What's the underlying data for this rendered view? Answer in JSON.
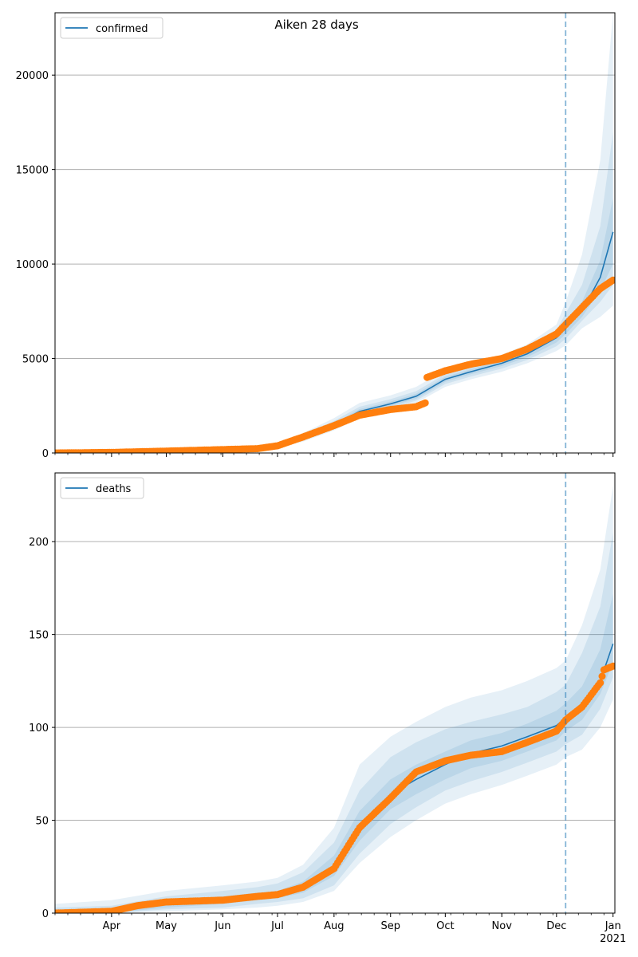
{
  "figure": {
    "title": "Aiken 28 days"
  },
  "chart_data": [
    {
      "type": "line",
      "legend": {
        "label": "confirmed",
        "placement": "top-left"
      },
      "grid": "horizontal",
      "xlim": [
        "2020-03-01",
        "2021-01-02"
      ],
      "ylim": [
        0,
        23300
      ],
      "yticks": [
        0,
        5000,
        10000,
        15000,
        20000
      ],
      "xtick_labels": [],
      "forecast_start": "2020-12-06",
      "colors": {
        "model": "#1f77b4",
        "observed": "#ff7f0e",
        "band": "#1f77b4"
      },
      "model": {
        "name": "confirmed",
        "x": [
          "2020-03-01",
          "2020-04-01",
          "2020-05-01",
          "2020-06-01",
          "2020-06-20",
          "2020-07-01",
          "2020-07-15",
          "2020-08-01",
          "2020-08-15",
          "2020-09-01",
          "2020-09-15",
          "2020-10-01",
          "2020-10-15",
          "2020-11-01",
          "2020-11-15",
          "2020-12-01",
          "2020-12-06",
          "2020-12-15",
          "2020-12-25",
          "2021-01-01"
        ],
        "values": [
          0,
          30,
          100,
          180,
          230,
          380,
          800,
          1500,
          2200,
          2600,
          3000,
          3900,
          4300,
          4750,
          5250,
          6100,
          6600,
          7500,
          9300,
          11700
        ]
      },
      "observed": {
        "x": [
          "2020-03-01",
          "2020-04-01",
          "2020-05-01",
          "2020-06-01",
          "2020-06-20",
          "2020-07-01",
          "2020-07-15",
          "2020-08-01",
          "2020-08-15",
          "2020-09-01",
          "2020-09-15",
          "2020-09-20",
          "2020-09-21",
          "2020-10-01",
          "2020-10-15",
          "2020-11-01",
          "2020-11-15",
          "2020-12-01",
          "2020-12-06",
          "2020-12-15",
          "2020-12-25",
          "2021-01-01"
        ],
        "values": [
          0,
          30,
          100,
          180,
          230,
          380,
          850,
          1450,
          2000,
          2300,
          2450,
          2650,
          4000,
          4350,
          4700,
          5000,
          5500,
          6300,
          6800,
          7700,
          8700,
          9150
        ]
      },
      "bands": [
        {
          "level": "outer",
          "lower": [
            0,
            5,
            40,
            100,
            140,
            260,
            600,
            1200,
            1850,
            2250,
            2650,
            3500,
            3900,
            4300,
            4750,
            5400,
            5700,
            6600,
            7200,
            7800
          ],
          "upper": [
            100,
            150,
            220,
            300,
            360,
            520,
            1050,
            1850,
            2650,
            3050,
            3500,
            4400,
            4750,
            5200,
            5750,
            6800,
            8000,
            10500,
            15500,
            23300
          ]
        },
        {
          "level": "middle",
          "lower": [
            0,
            12,
            60,
            130,
            175,
            300,
            680,
            1320,
            1980,
            2380,
            2770,
            3650,
            4050,
            4470,
            4920,
            5650,
            6050,
            7000,
            8000,
            8900
          ],
          "upper": [
            60,
            80,
            160,
            230,
            290,
            460,
            940,
            1700,
            2450,
            2850,
            3270,
            4170,
            4550,
            5020,
            5550,
            6500,
            7400,
            8900,
            12000,
            17000
          ]
        },
        {
          "level": "inner",
          "lower": [
            0,
            20,
            80,
            155,
            205,
            340,
            750,
            1420,
            2080,
            2480,
            2870,
            3770,
            4170,
            4600,
            5070,
            5850,
            6300,
            7200,
            8600,
            10000
          ],
          "upper": [
            30,
            45,
            125,
            210,
            260,
            420,
            860,
            1580,
            2320,
            2720,
            3130,
            4030,
            4430,
            4900,
            5420,
            6330,
            6900,
            8000,
            10200,
            13500
          ]
        }
      ]
    },
    {
      "type": "line",
      "legend": {
        "label": "deaths",
        "placement": "top-left"
      },
      "grid": "horizontal",
      "xlim": [
        "2020-03-01",
        "2021-01-02"
      ],
      "ylim": [
        0,
        237
      ],
      "yticks": [
        0,
        50,
        100,
        150,
        200
      ],
      "xtick_labels": [
        "Apr",
        "May",
        "Jun",
        "Jul",
        "Aug",
        "Sep",
        "Oct",
        "Nov",
        "Dec",
        "Jan\n2021"
      ],
      "forecast_start": "2020-12-06",
      "colors": {
        "model": "#1f77b4",
        "observed": "#ff7f0e",
        "band": "#1f77b4"
      },
      "model": {
        "name": "deaths",
        "x": [
          "2020-03-01",
          "2020-04-01",
          "2020-05-01",
          "2020-06-01",
          "2020-06-20",
          "2020-07-01",
          "2020-07-15",
          "2020-08-01",
          "2020-08-15",
          "2020-09-01",
          "2020-09-15",
          "2020-10-01",
          "2020-10-15",
          "2020-11-01",
          "2020-11-15",
          "2020-12-01",
          "2020-12-06",
          "2020-12-15",
          "2020-12-25",
          "2021-01-01"
        ],
        "values": [
          0,
          1,
          5,
          7,
          9,
          10,
          14,
          25,
          47,
          64,
          72,
          80,
          86,
          90,
          95,
          101,
          105,
          112,
          125,
          145
        ]
      },
      "observed": {
        "x": [
          "2020-03-01",
          "2020-04-01",
          "2020-04-15",
          "2020-05-01",
          "2020-06-01",
          "2020-06-20",
          "2020-07-01",
          "2020-07-15",
          "2020-08-01",
          "2020-08-15",
          "2020-09-01",
          "2020-09-15",
          "2020-10-01",
          "2020-10-15",
          "2020-11-01",
          "2020-11-15",
          "2020-12-01",
          "2020-12-06",
          "2020-12-15",
          "2020-12-25",
          "2020-12-27",
          "2021-01-01"
        ],
        "values": [
          0,
          1,
          4,
          6,
          7,
          9,
          10,
          14,
          24,
          46,
          62,
          76,
          82,
          85,
          87,
          92,
          98,
          104,
          111,
          124,
          131,
          133
        ]
      },
      "bands": [
        {
          "level": "outer",
          "lower": [
            0,
            0,
            1,
            2,
            3,
            4,
            6,
            12,
            27,
            41,
            50,
            59,
            64,
            69,
            74,
            80,
            84,
            88,
            100,
            115
          ],
          "upper": [
            5,
            7,
            12,
            15,
            17,
            19,
            26,
            46,
            80,
            95,
            103,
            111,
            116,
            120,
            125,
            132,
            136,
            155,
            185,
            230
          ]
        },
        {
          "level": "middle",
          "lower": [
            0,
            0,
            2,
            3,
            5,
            6,
            8,
            15,
            32,
            48,
            57,
            66,
            71,
            76,
            81,
            87,
            91,
            96,
            110,
            127
          ],
          "upper": [
            3,
            4,
            9,
            12,
            14,
            16,
            22,
            38,
            66,
            84,
            92,
            99,
            103,
            107,
            111,
            119,
            123,
            140,
            165,
            205
          ]
        },
        {
          "level": "inner",
          "lower": [
            0,
            0,
            3,
            5,
            7,
            8,
            11,
            20,
            39,
            56,
            64,
            72,
            78,
            82,
            87,
            93,
            98,
            104,
            118,
            135
          ],
          "upper": [
            2,
            2,
            7,
            9,
            11,
            12,
            17,
            31,
            55,
            72,
            80,
            87,
            93,
            97,
            102,
            109,
            113,
            122,
            142,
            172
          ]
        }
      ]
    }
  ]
}
